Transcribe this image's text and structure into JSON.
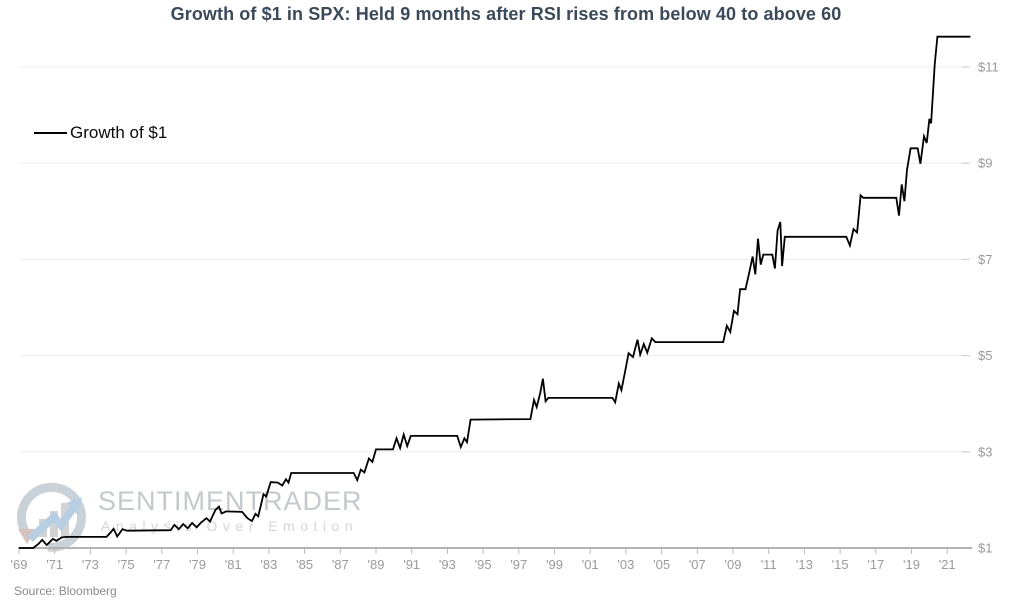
{
  "title": "Growth of $1 in SPX: Held 9 months after RSI rises from below 40 to above 60",
  "legend": {
    "label": "Growth of $1"
  },
  "footer": {
    "source": "Source: Bloomberg"
  },
  "watermark": {
    "brand": "SENTIMENTRADER",
    "tagline": "Analysis Over Emotion",
    "logo_icon": "circle-arrow-bar-chart-logo"
  },
  "colors": {
    "title": "#3b4a5a",
    "series_line": "#000000",
    "axis_line": "#b3b3b3",
    "gridline": "#ededed",
    "tick": "#bbbbbb",
    "tick_label": "#9a9a9a",
    "watermark_text": "#c5c9cd"
  },
  "chart_data": {
    "type": "line",
    "title": "Growth of $1 in SPX: Held 9 months after RSI rises from below 40 to above 60",
    "xlabel": "",
    "ylabel": "",
    "legend_position": "top-left",
    "grid": "horizontal-only",
    "x_range": [
      1968.9,
      2023.4
    ],
    "y_range": [
      1,
      11.8
    ],
    "x_tick_years": [
      1969,
      1971,
      1973,
      1975,
      1977,
      1979,
      1981,
      1983,
      1985,
      1987,
      1989,
      1991,
      1993,
      1995,
      1997,
      1999,
      2001,
      2003,
      2005,
      2007,
      2009,
      2011,
      2013,
      2015,
      2017,
      2019,
      2021
    ],
    "x_tick_labels": [
      "'69",
      "'71",
      "'73",
      "'75",
      "'77",
      "'79",
      "'81",
      "'83",
      "'85",
      "'87",
      "'89",
      "'91",
      "'93",
      "'95",
      "'97",
      "'99",
      "'01",
      "'03",
      "'05",
      "'07",
      "'09",
      "'11",
      "'13",
      "'15",
      "'17",
      "'19",
      "'21"
    ],
    "y_tick_values": [
      1,
      3,
      5,
      7,
      9,
      11
    ],
    "y_tick_labels": [
      "$1",
      "$3",
      "$5",
      "$7",
      "$9",
      "$11"
    ],
    "series": [
      {
        "name": "Growth of $1",
        "color": "#000000",
        "points": [
          [
            1969.0,
            1.0
          ],
          [
            1969.8,
            1.0
          ],
          [
            1970.1,
            1.09
          ],
          [
            1970.3,
            1.17
          ],
          [
            1970.55,
            1.06
          ],
          [
            1970.9,
            1.19
          ],
          [
            1971.1,
            1.15
          ],
          [
            1971.4,
            1.22
          ],
          [
            1971.7,
            1.23
          ],
          [
            1973.9,
            1.23
          ],
          [
            1974.15,
            1.33
          ],
          [
            1974.3,
            1.4
          ],
          [
            1974.5,
            1.24
          ],
          [
            1974.8,
            1.39
          ],
          [
            1975.05,
            1.36
          ],
          [
            1977.5,
            1.37
          ],
          [
            1977.7,
            1.48
          ],
          [
            1977.95,
            1.39
          ],
          [
            1978.2,
            1.5
          ],
          [
            1978.45,
            1.41
          ],
          [
            1978.7,
            1.52
          ],
          [
            1978.95,
            1.43
          ],
          [
            1979.2,
            1.53
          ],
          [
            1979.5,
            1.62
          ],
          [
            1979.7,
            1.55
          ],
          [
            1980.0,
            1.79
          ],
          [
            1980.2,
            1.86
          ],
          [
            1980.35,
            1.72
          ],
          [
            1980.6,
            1.76
          ],
          [
            1981.5,
            1.75
          ],
          [
            1981.8,
            1.62
          ],
          [
            1982.05,
            1.56
          ],
          [
            1982.25,
            1.71
          ],
          [
            1982.4,
            1.66
          ],
          [
            1982.55,
            1.89
          ],
          [
            1982.7,
            2.12
          ],
          [
            1982.85,
            2.07
          ],
          [
            1983.1,
            2.37
          ],
          [
            1983.5,
            2.36
          ],
          [
            1983.75,
            2.3
          ],
          [
            1983.95,
            2.43
          ],
          [
            1984.1,
            2.36
          ],
          [
            1984.25,
            2.56
          ],
          [
            1987.75,
            2.56
          ],
          [
            1987.95,
            2.41
          ],
          [
            1988.15,
            2.63
          ],
          [
            1988.35,
            2.57
          ],
          [
            1988.6,
            2.86
          ],
          [
            1988.8,
            2.79
          ],
          [
            1989.0,
            3.05
          ],
          [
            1989.95,
            3.05
          ],
          [
            1990.15,
            3.28
          ],
          [
            1990.35,
            3.08
          ],
          [
            1990.55,
            3.36
          ],
          [
            1990.75,
            3.12
          ],
          [
            1990.95,
            3.33
          ],
          [
            1993.55,
            3.33
          ],
          [
            1993.75,
            3.1
          ],
          [
            1993.95,
            3.28
          ],
          [
            1994.1,
            3.2
          ],
          [
            1994.3,
            3.67
          ],
          [
            1997.65,
            3.68
          ],
          [
            1997.85,
            4.08
          ],
          [
            1998.0,
            3.93
          ],
          [
            1998.2,
            4.22
          ],
          [
            1998.35,
            4.52
          ],
          [
            1998.5,
            4.05
          ],
          [
            1998.65,
            4.12
          ],
          [
            2002.25,
            4.12
          ],
          [
            2002.4,
            4.03
          ],
          [
            2002.6,
            4.42
          ],
          [
            2002.75,
            4.28
          ],
          [
            2002.95,
            4.66
          ],
          [
            2003.15,
            5.05
          ],
          [
            2003.4,
            4.97
          ],
          [
            2003.65,
            5.33
          ],
          [
            2003.8,
            5.02
          ],
          [
            2004.0,
            5.24
          ],
          [
            2004.2,
            5.06
          ],
          [
            2004.45,
            5.36
          ],
          [
            2004.65,
            5.28
          ],
          [
            2008.45,
            5.28
          ],
          [
            2008.65,
            5.62
          ],
          [
            2008.85,
            5.49
          ],
          [
            2009.05,
            5.93
          ],
          [
            2009.25,
            5.86
          ],
          [
            2009.4,
            6.38
          ],
          [
            2009.7,
            6.38
          ],
          [
            2009.9,
            6.71
          ],
          [
            2010.1,
            7.06
          ],
          [
            2010.25,
            6.69
          ],
          [
            2010.4,
            7.43
          ],
          [
            2010.55,
            6.89
          ],
          [
            2010.7,
            7.1
          ],
          [
            2011.2,
            7.1
          ],
          [
            2011.35,
            6.81
          ],
          [
            2011.5,
            7.6
          ],
          [
            2011.65,
            7.78
          ],
          [
            2011.75,
            6.86
          ],
          [
            2011.9,
            7.47
          ],
          [
            2015.35,
            7.47
          ],
          [
            2015.55,
            7.29
          ],
          [
            2015.75,
            7.63
          ],
          [
            2015.95,
            7.56
          ],
          [
            2016.15,
            8.33
          ],
          [
            2016.3,
            8.28
          ],
          [
            2018.15,
            8.28
          ],
          [
            2018.3,
            7.91
          ],
          [
            2018.45,
            8.56
          ],
          [
            2018.6,
            8.21
          ],
          [
            2018.75,
            8.86
          ],
          [
            2018.95,
            9.31
          ],
          [
            2019.35,
            9.31
          ],
          [
            2019.5,
            8.99
          ],
          [
            2019.7,
            9.56
          ],
          [
            2019.85,
            9.42
          ],
          [
            2020.0,
            9.92
          ],
          [
            2020.1,
            9.83
          ],
          [
            2020.3,
            11.05
          ],
          [
            2020.45,
            11.63
          ],
          [
            2022.3,
            11.63
          ]
        ]
      }
    ]
  }
}
